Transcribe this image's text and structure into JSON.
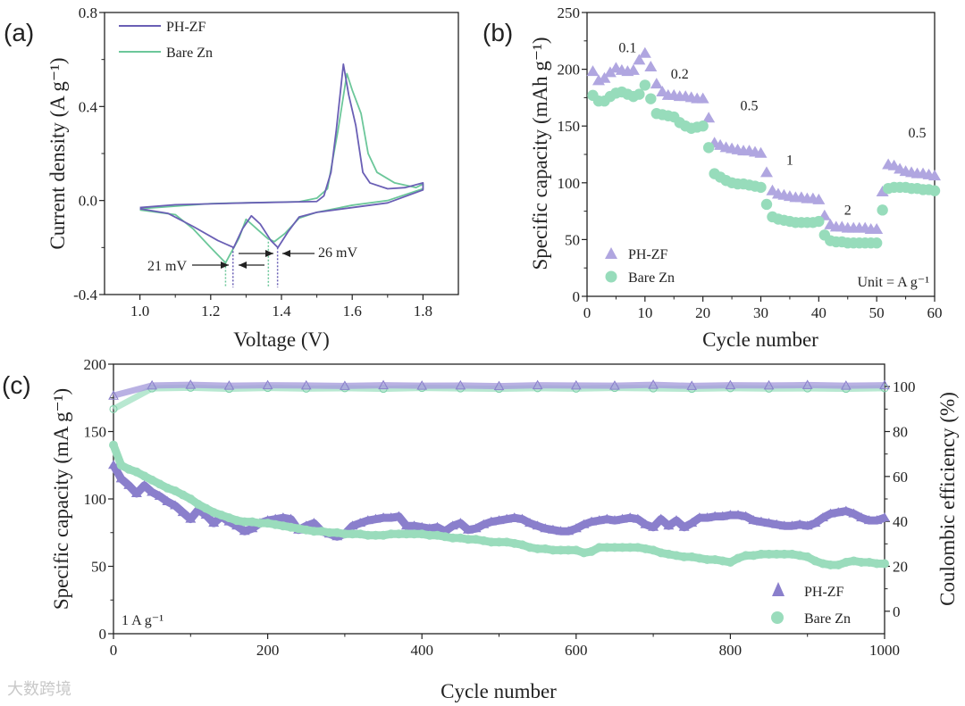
{
  "watermark": "大数跨境",
  "colors": {
    "phzf_line": "#6a5fb5",
    "bare_line": "#6cc79a",
    "phzf_marker": "#b0a6e0",
    "bare_marker": "#97dcbb",
    "phzf_band": "#8a7fcc",
    "bare_band": "#9adcbc"
  },
  "chart_data": [
    {
      "panel": "(a)",
      "type": "line",
      "xlabel": "Voltage (V)",
      "ylabel": "Current density (A g⁻¹)",
      "xlim": [
        0.9,
        1.9
      ],
      "ylim": [
        -0.4,
        0.8
      ],
      "xticks": [
        1.0,
        1.2,
        1.4,
        1.6,
        1.8
      ],
      "xtick_labels": [
        "1.0",
        "1.2",
        "1.4",
        "1.6",
        "1.8"
      ],
      "yticks": [
        -0.4,
        0.0,
        0.4,
        0.8
      ],
      "ytick_labels": [
        "-0.4",
        "0.0",
        "0.4",
        "0.8"
      ],
      "legend": [
        "PH-ZF",
        "Bare Zn"
      ],
      "legend_placement": "top-left",
      "annotations": [
        "21 mV",
        "26 mV"
      ],
      "peak_markers": [
        {
          "series": "Bare Zn",
          "x": 1.242
        },
        {
          "series": "PH-ZF",
          "x": 1.263
        },
        {
          "series": "Bare Zn",
          "x": 1.363
        },
        {
          "series": "PH-ZF",
          "x": 1.389
        }
      ],
      "series": [
        {
          "name": "PH-ZF",
          "points": [
            [
              1.0,
              -0.03
            ],
            [
              1.1,
              -0.018
            ],
            [
              1.3,
              -0.01
            ],
            [
              1.5,
              -0.004
            ],
            [
              1.52,
              0.02
            ],
            [
              1.54,
              0.12
            ],
            [
              1.555,
              0.3
            ],
            [
              1.575,
              0.58
            ],
            [
              1.59,
              0.45
            ],
            [
              1.61,
              0.32
            ],
            [
              1.63,
              0.12
            ],
            [
              1.65,
              0.075
            ],
            [
              1.7,
              0.05
            ],
            [
              1.75,
              0.055
            ],
            [
              1.8,
              0.075
            ],
            [
              1.8,
              0.045
            ],
            [
              1.7,
              -0.01
            ],
            [
              1.6,
              -0.03
            ],
            [
              1.5,
              -0.05
            ],
            [
              1.45,
              -0.07
            ],
            [
              1.42,
              -0.13
            ],
            [
              1.39,
              -0.2
            ],
            [
              1.37,
              -0.17
            ],
            [
              1.34,
              -0.1
            ],
            [
              1.315,
              -0.065
            ],
            [
              1.29,
              -0.12
            ],
            [
              1.265,
              -0.2
            ],
            [
              1.22,
              -0.17
            ],
            [
              1.15,
              -0.11
            ],
            [
              1.08,
              -0.055
            ],
            [
              1.0,
              -0.035
            ]
          ]
        },
        {
          "name": "Bare Zn",
          "points": [
            [
              1.0,
              -0.035
            ],
            [
              1.2,
              -0.013
            ],
            [
              1.45,
              -0.005
            ],
            [
              1.5,
              0.01
            ],
            [
              1.53,
              0.05
            ],
            [
              1.56,
              0.3
            ],
            [
              1.585,
              0.54
            ],
            [
              1.6,
              0.47
            ],
            [
              1.625,
              0.37
            ],
            [
              1.645,
              0.2
            ],
            [
              1.67,
              0.12
            ],
            [
              1.72,
              0.075
            ],
            [
              1.78,
              0.055
            ],
            [
              1.8,
              0.07
            ],
            [
              1.8,
              0.05
            ],
            [
              1.7,
              0.0
            ],
            [
              1.6,
              -0.02
            ],
            [
              1.5,
              -0.05
            ],
            [
              1.45,
              -0.075
            ],
            [
              1.41,
              -0.14
            ],
            [
              1.38,
              -0.175
            ],
            [
              1.36,
              -0.16
            ],
            [
              1.33,
              -0.12
            ],
            [
              1.3,
              -0.08
            ],
            [
              1.28,
              -0.16
            ],
            [
              1.242,
              -0.265
            ],
            [
              1.2,
              -0.2
            ],
            [
              1.15,
              -0.12
            ],
            [
              1.1,
              -0.06
            ],
            [
              1.0,
              -0.04
            ]
          ]
        }
      ]
    },
    {
      "panel": "(b)",
      "type": "scatter",
      "xlabel": "Cycle number",
      "ylabel": "Specific capacity (mAh g⁻¹)",
      "xlim": [
        0,
        60
      ],
      "ylim": [
        0,
        250
      ],
      "xticks": [
        0,
        10,
        20,
        30,
        40,
        50,
        60
      ],
      "xtick_labels": [
        "0",
        "10",
        "20",
        "30",
        "40",
        "50",
        "60"
      ],
      "yticks": [
        0,
        50,
        100,
        150,
        200,
        250
      ],
      "ytick_labels": [
        "0",
        "50",
        "100",
        "150",
        "200",
        "250"
      ],
      "legend": [
        "PH-ZF",
        "Bare Zn"
      ],
      "legend_placement": "bottom-left",
      "unit_note": "Unit = A g⁻¹",
      "rate_labels": [
        {
          "text": "0.1",
          "x": 7,
          "y": 215
        },
        {
          "text": "0.2",
          "x": 16,
          "y": 192
        },
        {
          "text": "0.5",
          "x": 28,
          "y": 164
        },
        {
          "text": "1",
          "x": 35,
          "y": 116
        },
        {
          "text": "2",
          "x": 45,
          "y": 72
        },
        {
          "text": "0.5",
          "x": 57,
          "y": 140
        }
      ],
      "series": [
        {
          "name": "PH-ZF",
          "marker": "triangle",
          "values": [
            198,
            190,
            192,
            197,
            201,
            199,
            198,
            199,
            208,
            214,
            202,
            187,
            180,
            177,
            177,
            176,
            176,
            175,
            174,
            174,
            157,
            135,
            133,
            131,
            130,
            129,
            128,
            128,
            127,
            126,
            109,
            93,
            90,
            89,
            88,
            87,
            87,
            86,
            86,
            85,
            71,
            63,
            61,
            61,
            60,
            60,
            60,
            60,
            59,
            59,
            92,
            116,
            115,
            112,
            110,
            109,
            108,
            108,
            107,
            106
          ]
        },
        {
          "name": "Bare Zn",
          "marker": "circle",
          "values": [
            177,
            172,
            172,
            176,
            179,
            180,
            178,
            176,
            178,
            186,
            174,
            161,
            160,
            159,
            158,
            153,
            150,
            148,
            149,
            150,
            131,
            108,
            105,
            102,
            100,
            99,
            99,
            98,
            97,
            96,
            81,
            70,
            68,
            67,
            66,
            65,
            65,
            65,
            65,
            66,
            54,
            49,
            48,
            48,
            47,
            47,
            47,
            47,
            47,
            47,
            76,
            95,
            96,
            96,
            96,
            95,
            95,
            94,
            94,
            93
          ]
        }
      ]
    },
    {
      "panel": "(c)",
      "type": "scatter",
      "xlabel": "Cycle number",
      "ylabel": "Specific capacity (mA g⁻¹)",
      "y2label": "Coulombic efficiency (%)",
      "xlim": [
        0,
        1000
      ],
      "ylim": [
        0,
        200
      ],
      "y2lim": [
        -10,
        110
      ],
      "xticks": [
        0,
        200,
        400,
        600,
        800,
        1000
      ],
      "xtick_labels": [
        "0",
        "200",
        "400",
        "600",
        "800",
        "1000"
      ],
      "yticks": [
        0,
        50,
        100,
        150,
        200
      ],
      "ytick_labels": [
        "0",
        "50",
        "100",
        "150",
        "200"
      ],
      "y2ticks": [
        0,
        20,
        40,
        60,
        80,
        100
      ],
      "y2tick_labels": [
        "0",
        "20",
        "40",
        "60",
        "80",
        "100"
      ],
      "legend": [
        "PH-ZF",
        "Bare Zn"
      ],
      "legend_placement": "bottom-right",
      "current_note": "1 A g⁻¹",
      "x_step": 10,
      "series": [
        {
          "name": "PH-ZF",
          "axis": "left",
          "values": [
            125,
            115,
            110,
            104,
            110,
            105,
            102,
            98,
            95,
            90,
            85,
            92,
            88,
            82,
            87,
            83,
            80,
            76,
            78,
            82,
            84,
            85,
            86,
            85,
            77,
            80,
            82,
            76,
            74,
            72,
            74,
            80,
            82,
            84,
            85,
            86,
            86,
            87,
            80,
            80,
            79,
            78,
            79,
            76,
            80,
            82,
            77,
            78,
            81,
            83,
            84,
            85,
            86,
            85,
            82,
            80,
            78,
            77,
            76,
            76,
            78,
            81,
            83,
            84,
            85,
            84,
            85,
            86,
            85,
            81,
            79,
            85,
            80,
            84,
            79,
            82,
            86,
            86,
            87,
            87,
            88,
            88,
            87,
            84,
            83,
            82,
            81,
            80,
            80,
            81,
            80,
            82,
            86,
            89,
            90,
            91,
            89,
            86,
            84,
            84,
            86
          ]
        },
        {
          "name": "Bare Zn",
          "axis": "left",
          "values": [
            140,
            125,
            122,
            120,
            117,
            114,
            111,
            108,
            106,
            103,
            100,
            96,
            93,
            90,
            88,
            86,
            84,
            83,
            83,
            82,
            82,
            81,
            80,
            79,
            78,
            77,
            76,
            76,
            75,
            75,
            74,
            74,
            74,
            73,
            73,
            73,
            74,
            74,
            74,
            74,
            74,
            73,
            73,
            72,
            71,
            71,
            70,
            70,
            69,
            68,
            68,
            68,
            67,
            66,
            64,
            63,
            63,
            62,
            62,
            62,
            62,
            60,
            61,
            64,
            64,
            64,
            64,
            64,
            64,
            63,
            62,
            60,
            59,
            58,
            57,
            57,
            56,
            55,
            55,
            54,
            53,
            56,
            58,
            58,
            59,
            59,
            59,
            59,
            59,
            58,
            57,
            54,
            52,
            51,
            51,
            53,
            54,
            53,
            53,
            52,
            52
          ]
        },
        {
          "name": "PH-ZF CE",
          "axis": "right",
          "x_step": 50,
          "values": [
            96,
            100.5,
            100.8,
            100.4,
            100.6,
            100.5,
            100.3,
            100.6,
            100.4,
            100.5,
            100.2,
            100.6,
            100.5,
            100.4,
            100.8,
            100.3,
            100.6,
            100.5,
            100.7,
            100.4,
            100.6
          ]
        },
        {
          "name": "Bare Zn CE",
          "axis": "right",
          "x_step": 50,
          "values": [
            90,
            99.2,
            99.5,
            99.0,
            99.4,
            99.1,
            99.3,
            99.0,
            99.4,
            99.2,
            99.0,
            99.3,
            99.1,
            99.4,
            99.2,
            99.0,
            99.3,
            99.1,
            99.2,
            99.0,
            99.3
          ]
        }
      ]
    }
  ]
}
